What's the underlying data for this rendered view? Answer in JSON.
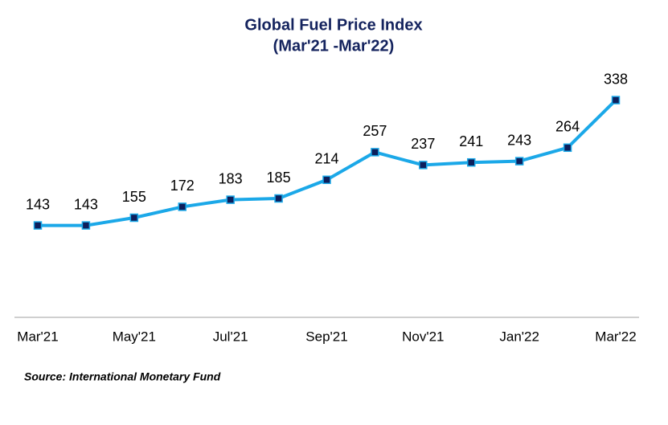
{
  "chart_data": {
    "type": "line",
    "title": "Global Fuel Price Index",
    "subtitle": "(Mar'21 -Mar'22)",
    "categories": [
      "Mar'21",
      null,
      "May'21",
      null,
      "Jul'21",
      null,
      "Sep'21",
      null,
      "Nov'21",
      null,
      "Jan'22",
      null,
      "Mar'22"
    ],
    "series": [
      {
        "name": "Global Fuel Price Index",
        "color": "#1ba8e8",
        "marker_color": "#0d1f5c",
        "values": [
          143,
          143,
          155,
          172,
          183,
          185,
          214,
          257,
          237,
          241,
          243,
          264,
          338
        ]
      }
    ],
    "ylim": [
      0,
      400
    ],
    "source": "Source: International Monetary Fund"
  }
}
